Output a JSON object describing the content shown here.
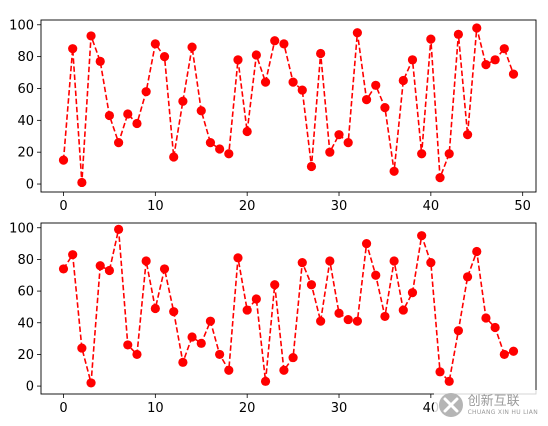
{
  "chart_data": [
    {
      "type": "line",
      "line_style": "dashed",
      "marker": "circle",
      "color": "#ff0000",
      "xlim": [
        -2.45,
        51.45
      ],
      "ylim": [
        -5,
        103
      ],
      "xticks": [
        0,
        10,
        20,
        30,
        40,
        50
      ],
      "yticks": [
        0,
        20,
        40,
        60,
        80,
        100
      ],
      "x": [
        0,
        1,
        2,
        3,
        4,
        5,
        6,
        7,
        8,
        9,
        10,
        11,
        12,
        13,
        14,
        15,
        16,
        17,
        18,
        19,
        20,
        21,
        22,
        23,
        24,
        25,
        26,
        27,
        28,
        29,
        30,
        31,
        32,
        33,
        34,
        35,
        36,
        37,
        38,
        39,
        40,
        41,
        42,
        43,
        44,
        45,
        46,
        47,
        48,
        49
      ],
      "series": [
        {
          "values": [
            15,
            85,
            1,
            93,
            77,
            43,
            26,
            44,
            38,
            58,
            88,
            80,
            17,
            52,
            86,
            46,
            26,
            22,
            19,
            78,
            33,
            81,
            64,
            90,
            88,
            64,
            59,
            11,
            82,
            20,
            31,
            26,
            95,
            53,
            62,
            48,
            8,
            65,
            78,
            19,
            91,
            4,
            19,
            94,
            31,
            98,
            75,
            78,
            85,
            69
          ]
        }
      ]
    },
    {
      "type": "line",
      "line_style": "dashed",
      "marker": "circle",
      "color": "#ff0000",
      "xlim": [
        -2.45,
        51.45
      ],
      "ylim": [
        -5,
        103
      ],
      "xticks": [
        0,
        10,
        20,
        30,
        40
      ],
      "yticks": [
        0,
        20,
        40,
        60,
        80,
        100
      ],
      "x": [
        0,
        1,
        2,
        3,
        4,
        5,
        6,
        7,
        8,
        9,
        10,
        11,
        12,
        13,
        14,
        15,
        16,
        17,
        18,
        19,
        20,
        21,
        22,
        23,
        24,
        25,
        26,
        27,
        28,
        29,
        30,
        31,
        32,
        33,
        34,
        35,
        36,
        37,
        38,
        39,
        40,
        41,
        42,
        43,
        44,
        45,
        46,
        47,
        48,
        49
      ],
      "series": [
        {
          "values": [
            74,
            83,
            24,
            2,
            76,
            73,
            99,
            26,
            20,
            79,
            49,
            74,
            47,
            15,
            31,
            27,
            41,
            20,
            10,
            81,
            48,
            55,
            3,
            64,
            10,
            18,
            78,
            64,
            41,
            79,
            46,
            42,
            41,
            90,
            70,
            44,
            79,
            48,
            59,
            95,
            78,
            9,
            3,
            35,
            69,
            85,
            43,
            37,
            20,
            22
          ]
        }
      ]
    }
  ],
  "watermark": {
    "text_cn": "创新互联",
    "text_en": "CHUANG XIN HU LIAN",
    "icon": "x-logo-icon"
  }
}
